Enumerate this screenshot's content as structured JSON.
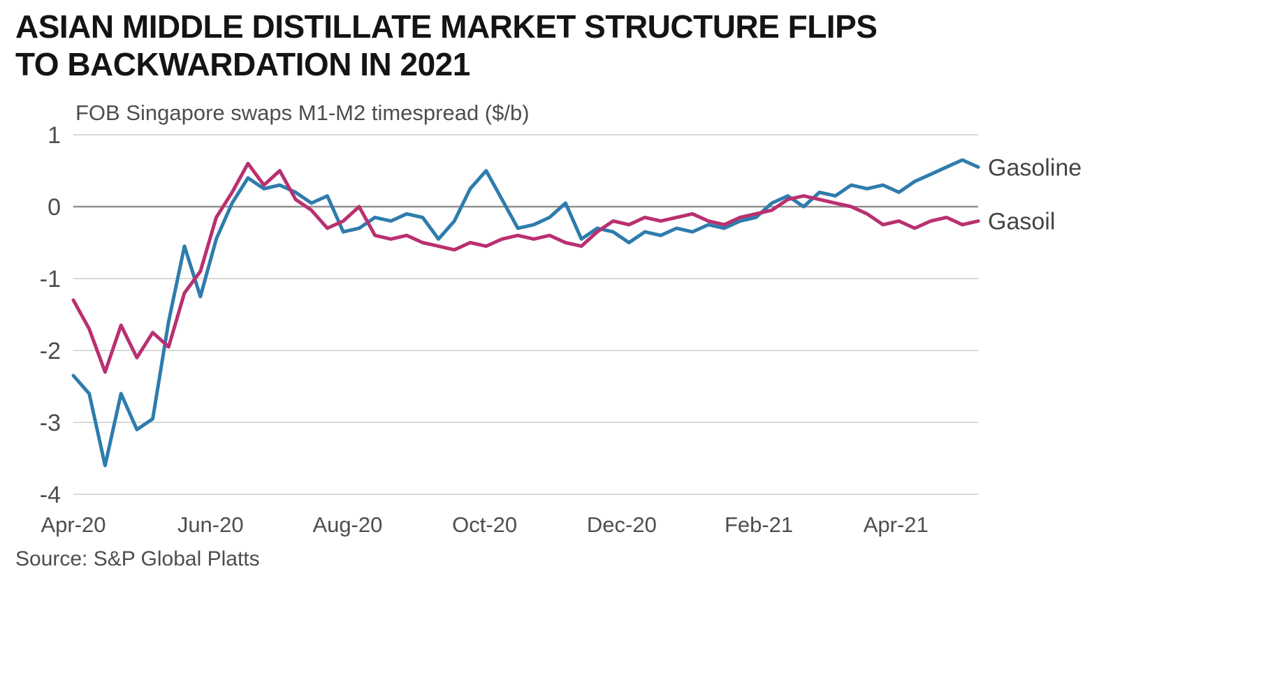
{
  "header": {
    "title_line1": "ASIAN MIDDLE DISTILLATE MARKET STRUCTURE FLIPS",
    "title_line2": "TO BACKWARDATION IN 2021",
    "subtitle": "FOB Singapore swaps M1-M2 timespread ($/b)"
  },
  "footer": {
    "source": "Source: S&P Global Platts"
  },
  "colors": {
    "gasoline": "#2e7cad",
    "gasoil": "#b93070",
    "grid": "#d8d8d8",
    "zero_line": "#8f8f8f",
    "axis_text": "#4d4d4d",
    "series_label_text": "#444444"
  },
  "chart_data": {
    "type": "line",
    "title": "ASIAN MIDDLE DISTILLATE MARKET STRUCTURE FLIPS TO BACKWARDATION IN 2021",
    "subtitle": "FOB Singapore swaps M1-M2 timespread ($/b)",
    "xlabel": "",
    "ylabel": "FOB Singapore swaps M1-M2 timespread ($/b)",
    "x_unit": "months since Apr-2020, weekly points",
    "x_start": 0,
    "x_step_months": 0.2316,
    "x_range": [
      0,
      13.2
    ],
    "x_tick_positions": [
      0,
      2,
      4,
      6,
      8,
      10,
      12
    ],
    "x_tick_labels": [
      "Apr-20",
      "Jun-20",
      "Aug-20",
      "Oct-20",
      "Dec-20",
      "Feb-21",
      "Apr-21"
    ],
    "ylim": [
      -4,
      1
    ],
    "y_ticks": [
      1,
      0,
      -1,
      -2,
      -3,
      -4
    ],
    "grid": true,
    "legend_position": "right-of-line-ends",
    "series": [
      {
        "name": "Gasoline",
        "color": "#2e7cad",
        "values": [
          -2.35,
          -2.6,
          -3.6,
          -2.6,
          -3.1,
          -2.95,
          -1.6,
          -0.55,
          -1.25,
          -0.45,
          0.05,
          0.4,
          0.25,
          0.3,
          0.2,
          0.05,
          0.15,
          -0.35,
          -0.3,
          -0.15,
          -0.2,
          -0.1,
          -0.15,
          -0.45,
          -0.2,
          0.25,
          0.5,
          0.1,
          -0.3,
          -0.25,
          -0.15,
          0.05,
          -0.45,
          -0.3,
          -0.35,
          -0.5,
          -0.35,
          -0.4,
          -0.3,
          -0.35,
          -0.25,
          -0.3,
          -0.2,
          -0.15,
          0.05,
          0.15,
          0.0,
          0.2,
          0.15,
          0.3,
          0.25,
          0.3,
          0.2,
          0.35,
          0.45,
          0.55,
          0.65,
          0.55
        ]
      },
      {
        "name": "Gasoil",
        "color": "#b93070",
        "values": [
          -1.3,
          -1.7,
          -2.3,
          -1.65,
          -2.1,
          -1.75,
          -1.95,
          -1.2,
          -0.9,
          -0.15,
          0.2,
          0.6,
          0.3,
          0.5,
          0.1,
          -0.05,
          -0.3,
          -0.2,
          0.0,
          -0.4,
          -0.45,
          -0.4,
          -0.5,
          -0.55,
          -0.6,
          -0.5,
          -0.55,
          -0.45,
          -0.4,
          -0.45,
          -0.4,
          -0.5,
          -0.55,
          -0.35,
          -0.2,
          -0.25,
          -0.15,
          -0.2,
          -0.15,
          -0.1,
          -0.2,
          -0.25,
          -0.15,
          -0.1,
          -0.05,
          0.1,
          0.15,
          0.1,
          0.05,
          0.0,
          -0.1,
          -0.25,
          -0.2,
          -0.3,
          -0.2,
          -0.15,
          -0.25,
          -0.2
        ]
      }
    ]
  }
}
